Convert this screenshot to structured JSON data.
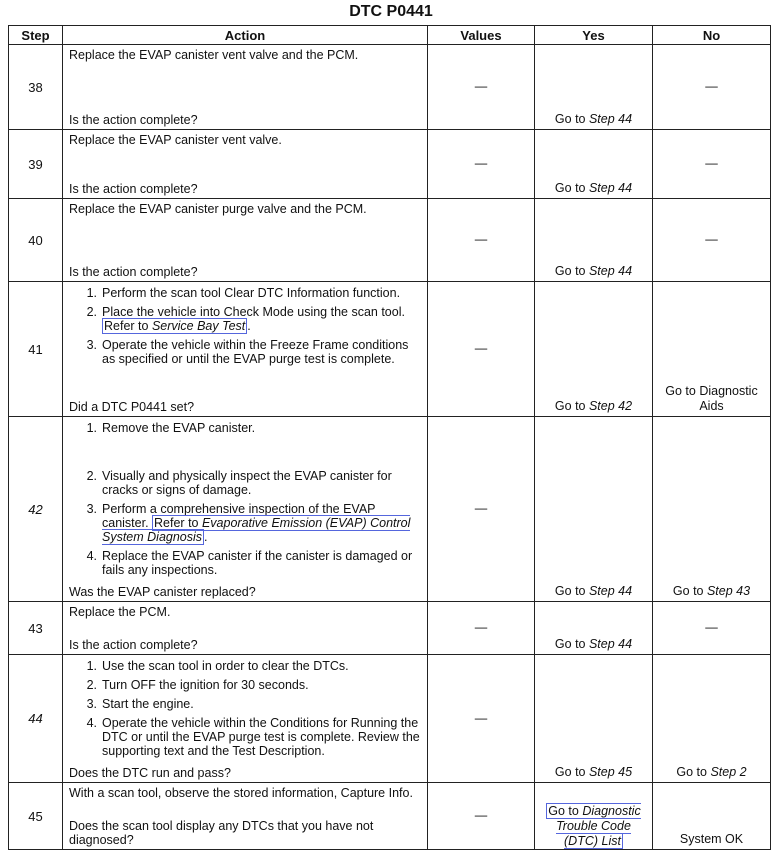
{
  "title": "DTC P0441",
  "columns": [
    "Step",
    "Action",
    "Values",
    "Yes",
    "No"
  ],
  "rows": [
    {
      "step": "38",
      "italic": false,
      "h": 84,
      "intro": "Replace the EVAP canister vent valve and the PCM.",
      "items": [],
      "question": "Is the action complete?",
      "values": "—",
      "yes": {
        "prefix": "Go to ",
        "ref": "Step 44"
      },
      "no": {
        "dash": "—"
      }
    },
    {
      "step": "39",
      "italic": false,
      "h": 68,
      "intro": "Replace the EVAP canister vent valve.",
      "items": [],
      "question": "Is the action complete?",
      "values": "—",
      "yes": {
        "prefix": "Go to ",
        "ref": "Step 44"
      },
      "no": {
        "dash": "—"
      }
    },
    {
      "step": "40",
      "italic": false,
      "h": 82,
      "intro": "Replace the EVAP canister purge valve and the PCM.",
      "items": [],
      "question": "Is the action complete?",
      "values": "—",
      "yes": {
        "prefix": "Go to ",
        "ref": "Step 44"
      },
      "no": {
        "dash": "—"
      }
    },
    {
      "step": "41",
      "italic": false,
      "h": 134,
      "intro": "",
      "items": [
        {
          "num": "1.",
          "text": "Perform the scan tool Clear DTC Information function."
        },
        {
          "num": "2.",
          "text": "Place the vehicle into Check Mode using the scan tool. ",
          "link_prefix": "Refer to ",
          "link_ref": "Service Bay Test",
          "suffix": "."
        },
        {
          "num": "3.",
          "text": "Operate the vehicle within the Freeze Frame conditions as specified or until the EVAP purge test is complete."
        }
      ],
      "question": "Did a DTC P0441 set?",
      "values": "—",
      "yes": {
        "prefix": "Go to ",
        "ref": "Step 42"
      },
      "no": {
        "text": "Go to Diagnostic Aids"
      }
    },
    {
      "step": "42",
      "italic": true,
      "h": 184,
      "intro": "",
      "items": [
        {
          "num": "1.",
          "text": "Remove the EVAP canister.",
          "gap": true
        },
        {
          "num": "2.",
          "text": "Visually and physically inspect the EVAP canister for cracks or signs of damage."
        },
        {
          "num": "3.",
          "text": "Perform a comprehensive inspection of the EVAP canister. ",
          "link_prefix": "Refer to ",
          "link_ref": "Evaporative Emission (EVAP) Control System Diagnosis",
          "suffix": "."
        },
        {
          "num": "4.",
          "text": "Replace the EVAP canister if the canister is damaged or fails any inspections."
        }
      ],
      "question": "Was the EVAP canister replaced?",
      "values": "—",
      "yes": {
        "prefix": "Go to ",
        "ref": "Step 44"
      },
      "no": {
        "prefix": "Go to ",
        "ref": "Step 43"
      }
    },
    {
      "step": "43",
      "italic": false,
      "h": 52,
      "intro": "Replace the PCM.",
      "items": [],
      "question": "Is the action complete?",
      "values": "—",
      "yes": {
        "prefix": "Go to ",
        "ref": "Step 44"
      },
      "no": {
        "dash": "—"
      }
    },
    {
      "step": "44",
      "italic": true,
      "h": 124,
      "intro": "",
      "items": [
        {
          "num": "1.",
          "text": "Use the scan tool in order to clear the DTCs."
        },
        {
          "num": "2.",
          "text": "Turn OFF the ignition for 30 seconds."
        },
        {
          "num": "3.",
          "text": "Start the engine."
        },
        {
          "num": "4.",
          "text": "Operate the vehicle within the Conditions for Running the DTC or until the EVAP purge test is complete. Review the supporting text and the Test Description."
        }
      ],
      "question": "Does the DTC run and pass?",
      "values": "—",
      "yes": {
        "prefix": "Go to ",
        "ref": "Step 45"
      },
      "no": {
        "prefix": "Go to ",
        "ref": "Step 2"
      }
    },
    {
      "step": "45",
      "italic": false,
      "h": 66,
      "intro": "With a scan tool, observe the stored information, Capture Info.",
      "items": [],
      "question": "Does the scan tool display any DTCs that you have not diagnosed?",
      "values": "—",
      "yes": {
        "link_prefix": "Go to ",
        "link_ref": "Diagnostic Trouble Code (DTC) List"
      },
      "no": {
        "text": "System OK"
      }
    }
  ]
}
